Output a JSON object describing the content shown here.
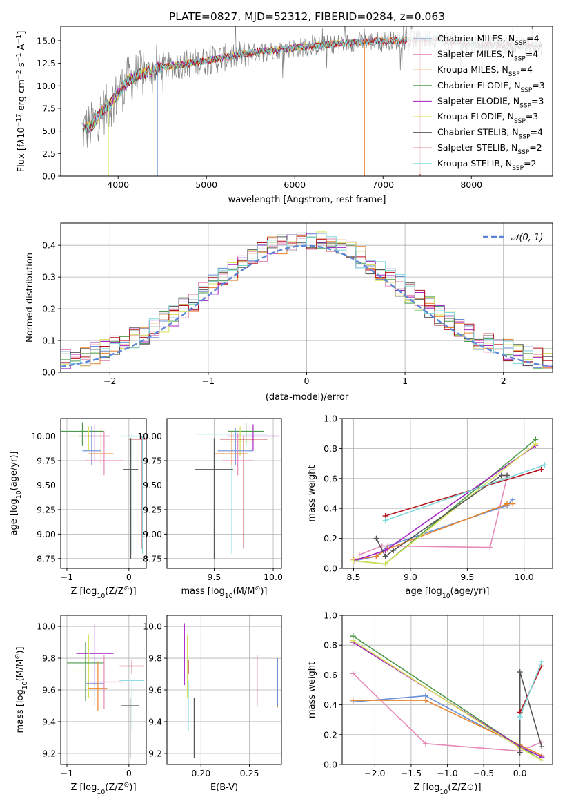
{
  "figure": {
    "title": "PLATE=0827, MJD=52312, FIBERID=0284, z=0.063"
  },
  "colors": {
    "data": "#808080",
    "chabrier_miles": "#6a8fd4",
    "salpeter_miles": "#e68ab8",
    "kroupa_miles": "#e8852b",
    "chabrier_elodie": "#4c9a4c",
    "salpeter_elodie": "#a421c5",
    "kroupa_elodie": "#d7e05a",
    "chabrier_stelib": "#555555",
    "salpeter_stelib": "#b5121b",
    "kroupa_stelib": "#7fd8dc",
    "normal_curve": "#5b86d6"
  },
  "chart_data": [
    {
      "id": "spectrum",
      "type": "line",
      "xlabel": "wavelength [Angstrom, rest frame]",
      "ylabel_parts": [
        "Flux [f",
        "λ",
        "10",
        "−17",
        " erg cm",
        "−2",
        " s",
        "−1",
        " A",
        "−1",
        "]"
      ],
      "xlim": [
        3350,
        8920
      ],
      "ylim": [
        0,
        16.6
      ],
      "xticks": [
        4000,
        5000,
        6000,
        7000,
        8000
      ],
      "xtick_labels": [
        "4000",
        "5000",
        "6000",
        "7000",
        "8000"
      ],
      "yticks": [
        0,
        2.5,
        5,
        7.5,
        10,
        12.5,
        15
      ],
      "ytick_labels": [
        "0.0",
        "2.5",
        "5.0",
        "7.5",
        "10.0",
        "12.5",
        "15.0"
      ],
      "continuum": {
        "x": [
          3600,
          3700,
          3800,
          3900,
          4000,
          4100,
          4200,
          4300,
          4500,
          4700,
          5000,
          5300,
          5600,
          6000,
          6400,
          6800,
          7100,
          7400,
          7600,
          7800,
          8000,
          8300,
          8600,
          8800
        ],
        "y": [
          5.0,
          5.6,
          6.9,
          7.8,
          9.1,
          10.5,
          11.1,
          11.4,
          12.1,
          12.3,
          12.8,
          13.3,
          13.8,
          14.2,
          14.6,
          14.9,
          15.0,
          15.1,
          15.3,
          14.9,
          14.6,
          14.5,
          14.4,
          14.4
        ]
      },
      "series": [
        {
          "key": "chabrier_miles",
          "label_main": "Chabrier MILES, N",
          "label_sub": "SSP",
          "label_tail": "=4",
          "xmax": 7400
        },
        {
          "key": "salpeter_miles",
          "label_main": "Salpeter MILES, N",
          "label_sub": "SSP",
          "label_tail": "=4",
          "xmax": 7400
        },
        {
          "key": "kroupa_miles",
          "label_main": "Kroupa MILES, N",
          "label_sub": "SSP",
          "label_tail": "=4",
          "xmax": 7400
        },
        {
          "key": "chabrier_elodie",
          "label_main": "Chabrier ELODIE, N",
          "label_sub": "SSP",
          "label_tail": "=3",
          "xmax": 6800
        },
        {
          "key": "salpeter_elodie",
          "label_main": "Salpeter ELODIE, N",
          "label_sub": "SSP",
          "label_tail": "=3",
          "xmax": 6800
        },
        {
          "key": "kroupa_elodie",
          "label_main": "Kroupa ELODIE, N",
          "label_sub": "SSP",
          "label_tail": "=3",
          "xmax": 6800
        },
        {
          "key": "chabrier_stelib",
          "label_main": "Chabrier STELIB, N",
          "label_sub": "SSP",
          "label_tail": "=4",
          "xmax": 8800
        },
        {
          "key": "salpeter_stelib",
          "label_main": "Salpeter STELIB, N",
          "label_sub": "SSP",
          "label_tail": "=2",
          "xmax": 8800
        },
        {
          "key": "kroupa_stelib",
          "label_main": "Kroupa STELIB, N",
          "label_sub": "SSP",
          "label_tail": "=2",
          "xmax": 8800
        }
      ],
      "legend_position": "right"
    },
    {
      "id": "residuals",
      "type": "histogram",
      "xlabel": "(data-model)/error",
      "ylabel": "Normed distribution",
      "xlim": [
        -2.5,
        2.5
      ],
      "ylim": [
        0,
        0.47
      ],
      "xticks": [
        -2,
        -1,
        0,
        1,
        2
      ],
      "xtick_labels": [
        "−2",
        "−1",
        "0",
        "1",
        "2"
      ],
      "yticks": [
        0,
        0.1,
        0.2,
        0.3,
        0.4
      ],
      "ytick_labels": [
        "0.0",
        "0.1",
        "0.2",
        "0.3",
        "0.4"
      ],
      "bin_width": 0.1,
      "legend_label": "𝒩(0, 1)",
      "legend_position": "upper right",
      "grid": true
    },
    {
      "id": "age_vs_Z",
      "type": "errorbar",
      "xlabel_parts": [
        "Z [log",
        "10",
        "(Z/Z",
        "⊙",
        ")]"
      ],
      "ylabel_parts": [
        "age  [log",
        "10",
        "(age/yr)]"
      ],
      "xlim": [
        -1.1,
        0.28
      ],
      "ylim": [
        8.65,
        10.18
      ],
      "xticks": [
        -1,
        0
      ],
      "xtick_labels": [
        "−1",
        "0"
      ],
      "yticks": [
        8.75,
        9.0,
        9.25,
        9.5,
        9.75,
        10.0
      ],
      "ytick_labels": [
        "8.75",
        "9.00",
        "9.25",
        "9.50",
        "9.75",
        "10.00"
      ],
      "points": [
        {
          "c": "chabrier_elodie",
          "x": -0.75,
          "xerr": 0.35,
          "y": 10.05,
          "ylo": 9.9,
          "yhi": 10.14
        },
        {
          "c": "kroupa_elodie",
          "x": -0.65,
          "xerr": 0.3,
          "y": 10.0,
          "ylo": 9.85,
          "yhi": 10.1
        },
        {
          "c": "salpeter_elodie",
          "x": -0.55,
          "xerr": 0.25,
          "y": 10.0,
          "ylo": 9.75,
          "yhi": 10.12
        },
        {
          "c": "chabrier_miles",
          "x": -0.6,
          "xerr": 0.15,
          "y": 9.85,
          "ylo": 9.7,
          "yhi": 10.1
        },
        {
          "c": "kroupa_miles",
          "x": -0.45,
          "xerr": 0.2,
          "y": 9.82,
          "ylo": 9.7,
          "yhi": 10.08
        },
        {
          "c": "salpeter_miles",
          "x": -0.4,
          "xerr": 0.3,
          "y": 9.75,
          "ylo": 9.6,
          "yhi": 10.05
        },
        {
          "c": "kroupa_stelib",
          "x": 0.05,
          "xerr": 0.2,
          "y": 10.0,
          "ylo": 8.8,
          "yhi": 10.02
        },
        {
          "c": "salpeter_stelib",
          "x": 0.2,
          "xerr": 0.2,
          "y": 9.97,
          "ylo": 8.85,
          "yhi": 10.0
        },
        {
          "c": "chabrier_stelib",
          "x": 0.03,
          "xerr": 0.12,
          "y": 9.66,
          "ylo": 8.75,
          "yhi": 9.98
        },
        {
          "c": "kroupa_stelib",
          "x": 0.22,
          "xerr": 0.0,
          "y": 9.0,
          "ylo": 8.8,
          "yhi": 10.0
        }
      ]
    },
    {
      "id": "age_vs_mass",
      "type": "errorbar",
      "xlabel_parts": [
        "mass [log",
        "10",
        "(M/M",
        "⊙",
        ")]"
      ],
      "ylabel_parts": [],
      "xlim": [
        9.1,
        10.07
      ],
      "ylim": [
        8.65,
        10.18
      ],
      "xticks": [
        9.5,
        10.0
      ],
      "xtick_labels": [
        "9.5",
        "10.0"
      ],
      "yticks": [
        8.75,
        9.0,
        9.25,
        9.5,
        9.75,
        10.0
      ],
      "ytick_labels": [
        "8.75",
        "9.00",
        "9.25",
        "9.50",
        "9.75",
        "10.00"
      ],
      "points": [
        {
          "c": "kroupa_stelib",
          "x": 9.65,
          "xerr": 0.3,
          "y": 10.02,
          "ylo": 8.8,
          "yhi": 10.05
        },
        {
          "c": "salpeter_elodie",
          "x": 9.83,
          "xerr": 0.22,
          "y": 10.0,
          "ylo": 9.85,
          "yhi": 10.12
        },
        {
          "c": "chabrier_elodie",
          "x": 9.77,
          "xerr": 0.15,
          "y": 10.05,
          "ylo": 9.9,
          "yhi": 10.14
        },
        {
          "c": "kroupa_elodie",
          "x": 9.72,
          "xerr": 0.12,
          "y": 9.95,
          "ylo": 9.8,
          "yhi": 10.1
        },
        {
          "c": "salpeter_stelib",
          "x": 9.75,
          "xerr": 0.2,
          "y": 9.97,
          "ylo": 8.85,
          "yhi": 10.0
        },
        {
          "c": "chabrier_miles",
          "x": 9.68,
          "xerr": 0.15,
          "y": 9.85,
          "ylo": 9.7,
          "yhi": 10.08
        },
        {
          "c": "kroupa_miles",
          "x": 9.65,
          "xerr": 0.14,
          "y": 9.82,
          "ylo": 9.7,
          "yhi": 10.05
        },
        {
          "c": "salpeter_miles",
          "x": 9.7,
          "xerr": 0.13,
          "y": 9.75,
          "ylo": 9.6,
          "yhi": 10.03
        },
        {
          "c": "chabrier_stelib",
          "x": 9.5,
          "xerr": 0.16,
          "y": 9.66,
          "ylo": 8.75,
          "yhi": 9.98
        }
      ]
    },
    {
      "id": "massweight_vs_age",
      "type": "line",
      "xlabel_parts": [
        "age  [log",
        "10",
        "(age/yr)]"
      ],
      "ylabel": "mass weight",
      "xlim": [
        8.4,
        10.25
      ],
      "ylim": [
        0,
        1.0
      ],
      "xticks": [
        8.5,
        9.0,
        9.5,
        10.0
      ],
      "xtick_labels": [
        "8.5",
        "9.0",
        "9.5",
        "10.0"
      ],
      "yticks": [
        0,
        0.2,
        0.4,
        0.6,
        0.8,
        1.0
      ],
      "ytick_labels": [
        "0.0",
        "0.2",
        "0.4",
        "0.6",
        "0.8",
        "1.0"
      ],
      "series": [
        {
          "c": "chabrier_miles",
          "x": [
            8.5,
            8.7,
            8.8,
            9.85,
            9.9
          ],
          "y": [
            0.05,
            0.08,
            0.15,
            0.42,
            0.46
          ]
        },
        {
          "c": "salpeter_miles",
          "x": [
            8.55,
            8.75,
            8.8,
            9.7,
            9.85
          ],
          "y": [
            0.09,
            0.15,
            0.15,
            0.14,
            0.61
          ]
        },
        {
          "c": "kroupa_miles",
          "x": [
            8.5,
            8.7,
            8.8,
            9.85,
            9.9
          ],
          "y": [
            0.06,
            0.08,
            0.13,
            0.43,
            0.43
          ]
        },
        {
          "c": "chabrier_elodie",
          "x": [
            8.5,
            8.78,
            10.1
          ],
          "y": [
            0.05,
            0.03,
            0.86
          ]
        },
        {
          "c": "salpeter_elodie",
          "x": [
            8.5,
            8.78,
            10.1
          ],
          "y": [
            0.05,
            0.12,
            0.82
          ]
        },
        {
          "c": "kroupa_elodie",
          "x": [
            8.5,
            8.78,
            10.1
          ],
          "y": [
            0.05,
            0.03,
            0.83
          ]
        },
        {
          "c": "chabrier_stelib",
          "x": [
            8.7,
            8.78,
            8.85,
            9.8,
            9.85
          ],
          "y": [
            0.2,
            0.08,
            0.12,
            0.62,
            0.62
          ]
        },
        {
          "c": "salpeter_stelib",
          "x": [
            8.78,
            10.15
          ],
          "y": [
            0.35,
            0.66
          ]
        },
        {
          "c": "kroupa_stelib",
          "x": [
            8.78,
            10.18
          ],
          "y": [
            0.32,
            0.69
          ]
        }
      ]
    },
    {
      "id": "mass_vs_Z",
      "type": "errorbar",
      "xlabel_parts": [
        "Z [log",
        "10",
        "(Z/Z",
        "⊙",
        ")]"
      ],
      "ylabel_parts": [
        "mass [log",
        "10",
        "(M/M",
        "⊙",
        ")]"
      ],
      "xlim": [
        -1.1,
        0.28
      ],
      "ylim": [
        9.13,
        10.07
      ],
      "xticks": [
        -1,
        0
      ],
      "xtick_labels": [
        "−1",
        "0"
      ],
      "yticks": [
        9.2,
        9.4,
        9.6,
        9.8,
        10.0
      ],
      "ytick_labels": [
        "9.2",
        "9.4",
        "9.6",
        "9.8",
        "10.0"
      ],
      "points": [
        {
          "c": "salpeter_elodie",
          "x": -0.55,
          "xerr": 0.3,
          "y": 9.83,
          "ylo": 9.63,
          "yhi": 10.02
        },
        {
          "c": "kroupa_elodie",
          "x": -0.65,
          "xerr": 0.25,
          "y": 9.72,
          "ylo": 9.55,
          "yhi": 9.95
        },
        {
          "c": "chabrier_elodie",
          "x": -0.7,
          "xerr": 0.3,
          "y": 9.77,
          "ylo": 9.53,
          "yhi": 9.9
        },
        {
          "c": "chabrier_miles",
          "x": -0.55,
          "xerr": 0.15,
          "y": 9.64,
          "ylo": 9.5,
          "yhi": 9.8
        },
        {
          "c": "kroupa_miles",
          "x": -0.5,
          "xerr": 0.15,
          "y": 9.61,
          "ylo": 9.47,
          "yhi": 9.78
        },
        {
          "c": "salpeter_miles",
          "x": -0.4,
          "xerr": 0.3,
          "y": 9.65,
          "ylo": 9.48,
          "yhi": 9.82
        },
        {
          "c": "salpeter_stelib",
          "x": 0.05,
          "xerr": 0.2,
          "y": 9.75,
          "ylo": 9.7,
          "yhi": 9.79
        },
        {
          "c": "kroupa_stelib",
          "x": 0.05,
          "xerr": 0.2,
          "y": 9.66,
          "ylo": 9.34,
          "yhi": 9.66
        },
        {
          "c": "chabrier_stelib",
          "x": 0.02,
          "xerr": 0.15,
          "y": 9.5,
          "ylo": 9.17,
          "yhi": 9.55
        }
      ]
    },
    {
      "id": "mass_vs_EBV",
      "type": "errorbar",
      "xlabel": "E(B-V)",
      "ylabel_parts": [],
      "xlim": [
        0.165,
        0.283
      ],
      "ylim": [
        9.13,
        10.07
      ],
      "xticks": [
        0.2,
        0.25
      ],
      "xtick_labels": [
        "0.20",
        "0.25"
      ],
      "yticks": [
        9.2,
        9.4,
        9.6,
        9.8,
        10.0
      ],
      "ytick_labels": [
        "9.2",
        "9.4",
        "9.6",
        "9.8",
        "10.0"
      ],
      "points": [
        {
          "c": "salpeter_elodie",
          "x": 0.183,
          "xerr": 0,
          "y": 9.83,
          "ylo": 9.63,
          "yhi": 10.02
        },
        {
          "c": "kroupa_elodie",
          "x": 0.186,
          "xerr": 0,
          "y": 9.75,
          "ylo": 9.55,
          "yhi": 9.95
        },
        {
          "c": "kroupa_stelib",
          "x": 0.187,
          "xerr": 0,
          "y": 9.5,
          "ylo": 9.34,
          "yhi": 9.66
        },
        {
          "c": "salpeter_stelib",
          "x": 0.187,
          "xerr": 0,
          "y": 9.75,
          "ylo": 9.7,
          "yhi": 9.79
        },
        {
          "c": "chabrier_stelib",
          "x": 0.193,
          "xerr": 0,
          "y": 9.4,
          "ylo": 9.17,
          "yhi": 9.55
        },
        {
          "c": "salpeter_miles",
          "x": 0.258,
          "xerr": 0,
          "y": 9.65,
          "ylo": 9.5,
          "yhi": 9.82
        },
        {
          "c": "kroupa_miles",
          "x": 0.279,
          "xerr": 0,
          "y": 9.62,
          "ylo": 9.49,
          "yhi": 9.77
        },
        {
          "c": "chabrier_miles",
          "x": 0.279,
          "xerr": 0,
          "y": 9.64,
          "ylo": 9.5,
          "yhi": 9.8
        }
      ]
    },
    {
      "id": "massweight_vs_Z",
      "type": "line",
      "xlabel_parts": [
        "Z [log",
        "10",
        "(Z/Z",
        "⊙",
        ")]"
      ],
      "ylabel": "mass weight",
      "xlim": [
        -2.45,
        0.45
      ],
      "ylim": [
        0,
        1.0
      ],
      "xticks": [
        -2.0,
        -1.5,
        -1.0,
        -0.5,
        0.0
      ],
      "xtick_labels": [
        "−2.0",
        "−1.5",
        "−1.0",
        "−0.5",
        "0.0"
      ],
      "yticks": [
        0,
        0.2,
        0.4,
        0.6,
        0.8,
        1.0
      ],
      "ytick_labels": [
        "0.0",
        "0.2",
        "0.4",
        "0.6",
        "0.8",
        "1.0"
      ],
      "series": [
        {
          "c": "chabrier_miles",
          "x": [
            -2.3,
            -1.3,
            0.0,
            0.3
          ],
          "y": [
            0.42,
            0.46,
            0.12,
            0.05
          ]
        },
        {
          "c": "salpeter_miles",
          "x": [
            -2.3,
            -1.3,
            0.0,
            0.3
          ],
          "y": [
            0.61,
            0.14,
            0.09,
            0.15
          ]
        },
        {
          "c": "kroupa_miles",
          "x": [
            -2.3,
            -1.3,
            0.0,
            0.3
          ],
          "y": [
            0.43,
            0.43,
            0.13,
            0.06
          ]
        },
        {
          "c": "chabrier_elodie",
          "x": [
            -2.3,
            0.0,
            0.3
          ],
          "y": [
            0.86,
            0.12,
            0.03
          ]
        },
        {
          "c": "salpeter_elodie",
          "x": [
            -2.3,
            0.0,
            0.3
          ],
          "y": [
            0.82,
            0.12,
            0.05
          ]
        },
        {
          "c": "kroupa_elodie",
          "x": [
            -2.3,
            0.0,
            0.3
          ],
          "y": [
            0.83,
            0.11,
            0.03
          ]
        },
        {
          "c": "chabrier_stelib",
          "x": [
            0.0,
            0.0,
            0.3
          ],
          "y": [
            0.08,
            0.62,
            0.12
          ]
        },
        {
          "c": "salpeter_stelib",
          "x": [
            0.0,
            0.3
          ],
          "y": [
            0.35,
            0.66
          ]
        },
        {
          "c": "kroupa_stelib",
          "x": [
            0.0,
            0.3
          ],
          "y": [
            0.32,
            0.69
          ]
        }
      ]
    }
  ]
}
